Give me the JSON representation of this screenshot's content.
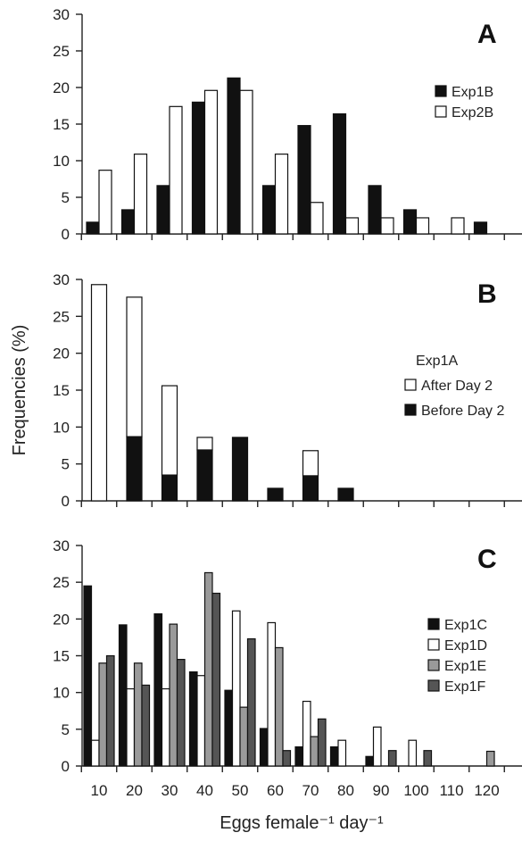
{
  "chart_data": {
    "type": "bar",
    "ylabel": "Frequencies (%)",
    "xlabel": "Eggs female⁻¹ day⁻¹",
    "x_ticks": [
      "10",
      "20",
      "30",
      "40",
      "50",
      "60",
      "70",
      "80",
      "90",
      "100",
      "110",
      "120"
    ],
    "panels": [
      {
        "label": "A",
        "ylim": [
          0,
          30
        ],
        "y_ticks": [
          "0",
          "5",
          "10",
          "15",
          "20",
          "25",
          "30"
        ],
        "legend": {
          "title": "",
          "entries": [
            "Exp1B",
            "Exp2B"
          ]
        },
        "series": [
          {
            "name": "Exp1B",
            "fill": "#111111",
            "values": [
              1.6,
              3.3,
              6.6,
              18.0,
              21.3,
              6.6,
              14.8,
              16.4,
              6.6,
              3.3,
              0,
              1.6
            ]
          },
          {
            "name": "Exp2B",
            "fill": "#ffffff",
            "values": [
              8.7,
              10.9,
              17.4,
              19.6,
              19.6,
              10.9,
              4.3,
              2.2,
              2.2,
              2.2,
              2.2,
              0
            ]
          }
        ]
      },
      {
        "label": "B",
        "ylim": [
          0,
          30
        ],
        "y_ticks": [
          "0",
          "5",
          "10",
          "15",
          "20",
          "25",
          "30"
        ],
        "legend": {
          "title": "Exp1A",
          "entries": [
            "After Day 2",
            "Before Day 2"
          ]
        },
        "stacked": true,
        "series": [
          {
            "name": "After Day 2",
            "fill": "#ffffff",
            "values": [
              29.3,
              18.9,
              12.1,
              1.7,
              0,
              0,
              3.4,
              0,
              0,
              0,
              0,
              0
            ]
          },
          {
            "name": "Before Day 2",
            "fill": "#111111",
            "values": [
              0,
              8.7,
              3.5,
              6.9,
              8.6,
              1.7,
              3.4,
              1.7,
              0,
              0,
              0,
              0
            ]
          }
        ]
      },
      {
        "label": "C",
        "ylim": [
          0,
          30
        ],
        "y_ticks": [
          "0",
          "5",
          "10",
          "15",
          "20",
          "25",
          "30"
        ],
        "legend": {
          "title": "",
          "entries": [
            "Exp1C",
            "Exp1D",
            "Exp1E",
            "Exp1F"
          ]
        },
        "series": [
          {
            "name": "Exp1C",
            "fill": "#111111",
            "values": [
              24.5,
              19.2,
              20.7,
              12.8,
              10.3,
              5.1,
              2.6,
              2.6,
              1.3,
              0,
              0,
              0
            ]
          },
          {
            "name": "Exp1D",
            "fill": "#ffffff",
            "values": [
              3.5,
              10.5,
              10.5,
              12.3,
              21.1,
              19.5,
              8.8,
              3.5,
              5.3,
              3.5,
              0,
              0
            ]
          },
          {
            "name": "Exp1E",
            "fill": "#9a9a9a",
            "values": [
              14.0,
              14.0,
              19.3,
              26.3,
              8.0,
              16.1,
              4.0,
              0,
              0,
              0,
              0,
              2.0
            ]
          },
          {
            "name": "Exp1F",
            "fill": "#555555",
            "values": [
              15.0,
              11.0,
              14.5,
              23.5,
              17.3,
              2.1,
              6.4,
              0,
              2.1,
              2.1,
              0,
              0
            ]
          }
        ]
      }
    ]
  }
}
